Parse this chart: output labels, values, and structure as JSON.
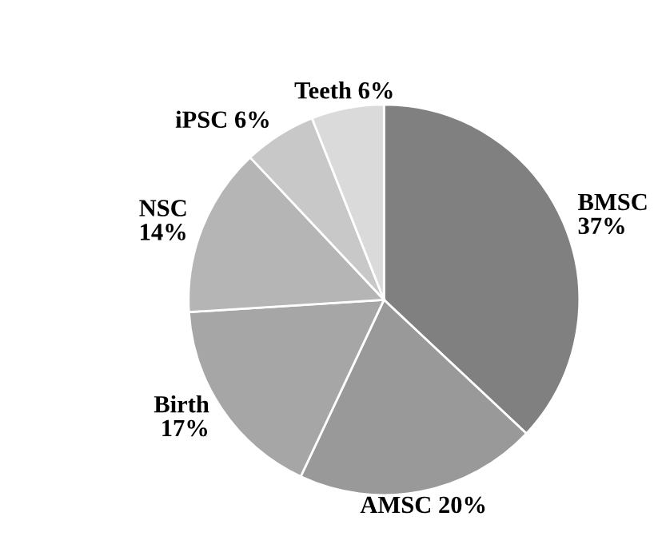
{
  "chart_data": {
    "type": "pie",
    "categories": [
      "BMSC",
      "AMSC",
      "Birth",
      "NSC",
      "iPSC",
      "Teeth"
    ],
    "values": [
      37,
      20,
      17,
      14,
      6,
      6
    ],
    "value_labels": [
      "37%",
      "20%",
      "17%",
      "14%",
      "6%",
      "6%"
    ],
    "colors": [
      "#808080",
      "#999999",
      "#a6a6a6",
      "#b5b5b5",
      "#c8c8c8",
      "#dadada"
    ]
  }
}
